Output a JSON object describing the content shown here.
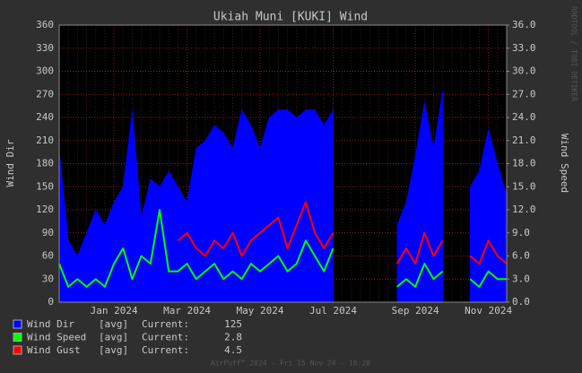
{
  "chart_data": {
    "type": "line",
    "title": "Ukiah Muni [KUKI] Wind",
    "y_label": "Wind Dir",
    "y2_label": "Wind Speed",
    "side_note": "RRDTOOL / TOBI OETIKER",
    "footer": "AirPuff™ 2024 - Fri 15 Nov 24 - 16:28",
    "categories": [
      null,
      null,
      null,
      null,
      null,
      null,
      "Jan 2024",
      null,
      null,
      null,
      null,
      null,
      null,
      null,
      "Mar 2024",
      null,
      null,
      null,
      null,
      null,
      null,
      null,
      "May 2024",
      null,
      null,
      null,
      null,
      null,
      null,
      null,
      "Jul 2024",
      null,
      null,
      null,
      null,
      null,
      null,
      null,
      null,
      "Sep 2024",
      null,
      null,
      null,
      null,
      null,
      null,
      null,
      "Nov 2024",
      null,
      null
    ],
    "ylim": [
      0,
      360
    ],
    "yticks": [
      0,
      30,
      60,
      90,
      120,
      150,
      180,
      210,
      240,
      270,
      300,
      330,
      360
    ],
    "y2lim": [
      0,
      36
    ],
    "y2ticks": [
      {
        "value": 0,
        "label": "0.0"
      },
      {
        "value": 3,
        "label": "3.0"
      },
      {
        "value": 6,
        "label": "6.0"
      },
      {
        "value": 9,
        "label": "9.0"
      },
      {
        "value": 12,
        "label": "12.0"
      },
      {
        "value": 15,
        "label": "15.0"
      },
      {
        "value": 18,
        "label": "18.0"
      },
      {
        "value": 21,
        "label": "21.0"
      },
      {
        "value": 24,
        "label": "24.0"
      },
      {
        "value": 27,
        "label": "27.0"
      },
      {
        "value": 30,
        "label": "30.0"
      },
      {
        "value": 33,
        "label": "33.0"
      },
      {
        "value": 36,
        "label": "36.0"
      }
    ],
    "grid": true,
    "series": [
      {
        "name": "Wind Dir",
        "cf": "[avg]",
        "current_label": "Current:",
        "current": 125,
        "color": "#0000ff",
        "style": "area",
        "values": [
          200,
          80,
          60,
          90,
          120,
          100,
          130,
          150,
          250,
          110,
          160,
          150,
          170,
          150,
          130,
          200,
          210,
          230,
          220,
          200,
          250,
          230,
          200,
          240,
          250,
          250,
          240,
          250,
          250,
          230,
          250,
          null,
          null,
          null,
          null,
          null,
          null,
          100,
          130,
          190,
          260,
          200,
          275,
          null,
          null,
          150,
          170,
          225,
          180,
          140
        ]
      },
      {
        "name": "Wind Speed",
        "cf": "[avg]",
        "current_label": "Current:",
        "current": 2.8,
        "color": "#00ff00",
        "style": "line",
        "axis": "y2",
        "values": [
          5,
          2,
          3,
          2,
          3,
          2,
          5,
          7,
          3,
          6,
          5,
          12,
          4,
          4,
          5,
          3,
          4,
          5,
          3,
          4,
          3,
          5,
          4,
          5,
          6,
          4,
          5,
          8,
          6,
          4,
          7,
          null,
          null,
          null,
          null,
          null,
          null,
          2,
          3,
          2,
          5,
          3,
          4,
          null,
          null,
          3,
          2,
          4,
          3,
          3
        ]
      },
      {
        "name": "Wind Gust",
        "cf": "[avg]",
        "current_label": "Current:",
        "current": 4.5,
        "color": "#ff0000",
        "style": "line",
        "axis": "y2",
        "values": [
          null,
          null,
          null,
          null,
          null,
          null,
          null,
          null,
          null,
          null,
          null,
          null,
          null,
          8,
          9,
          7,
          6,
          8,
          7,
          9,
          6,
          8,
          9,
          10,
          11,
          7,
          10,
          13,
          9,
          7,
          9,
          null,
          null,
          null,
          null,
          null,
          null,
          5,
          7,
          5,
          9,
          6,
          8,
          null,
          null,
          6,
          5,
          8,
          6,
          5
        ]
      }
    ]
  }
}
